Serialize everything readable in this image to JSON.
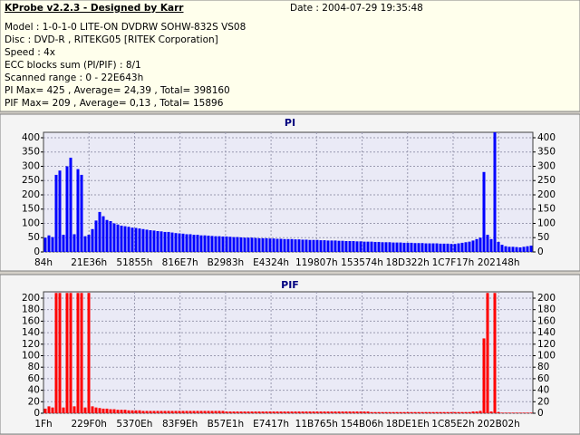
{
  "header": {
    "title": "KProbe v2.2.3 - Designed by Karr",
    "date": "Date : 2004-07-29 19:35:48",
    "lines": [
      "Model : 1-0-1-0 LITE-ON DVDRW SOHW-832S  VS08",
      "Disc : DVD-R , RITEKG05 [RITEK Corporation]",
      "Speed : 4x",
      "ECC blocks sum (PI/PIF) : 8/1",
      "Scanned range : 0 - 22E643h",
      "PI Max= 425 , Average= 24,39 , Total= 398160",
      "PIF Max= 209 , Average= 0,13 , Total= 15896"
    ]
  },
  "chart_data": [
    {
      "type": "bar",
      "title": "PI",
      "color": "#0000ff",
      "grid": true,
      "ylim": [
        0,
        419
      ],
      "yticks": [
        0,
        50,
        100,
        150,
        200,
        250,
        300,
        350,
        400
      ],
      "xticks": [
        "84h",
        "21E36h",
        "51855h",
        "816E7h",
        "B2983h",
        "E4324h",
        "119807h",
        "153574h",
        "18D322h",
        "1C7F17h",
        "202148h"
      ],
      "values": [
        50,
        58,
        52,
        270,
        285,
        60,
        300,
        330,
        62,
        290,
        270,
        55,
        60,
        80,
        110,
        140,
        125,
        112,
        108,
        100,
        96,
        92,
        90,
        88,
        85,
        84,
        82,
        80,
        78,
        76,
        75,
        73,
        72,
        70,
        70,
        68,
        66,
        65,
        64,
        62,
        62,
        60,
        60,
        58,
        58,
        57,
        56,
        55,
        55,
        54,
        54,
        53,
        52,
        52,
        51,
        50,
        50,
        50,
        49,
        48,
        48,
        48,
        47,
        47,
        46,
        46,
        45,
        45,
        45,
        44,
        44,
        43,
        43,
        42,
        42,
        42,
        41,
        41,
        40,
        40,
        40,
        39,
        39,
        38,
        38,
        38,
        37,
        37,
        36,
        36,
        36,
        35,
        35,
        34,
        34,
        34,
        33,
        33,
        33,
        32,
        32,
        32,
        31,
        31,
        31,
        30,
        30,
        30,
        30,
        29,
        29,
        29,
        28,
        28,
        30,
        32,
        34,
        36,
        40,
        45,
        50,
        280,
        60,
        45,
        425,
        35,
        25,
        20,
        18,
        18,
        17,
        16,
        18,
        20,
        22
      ]
    },
    {
      "type": "bar",
      "title": "PIF",
      "color": "#ff0000",
      "grid": true,
      "ylim": [
        0,
        211
      ],
      "yticks": [
        0,
        20,
        40,
        60,
        80,
        100,
        120,
        140,
        160,
        180,
        200
      ],
      "xticks": [
        "1Fh",
        "229F0h",
        "5370Eh",
        "83F9Eh",
        "B57E1h",
        "E7417h",
        "11B765h",
        "154B06h",
        "18DE1Eh",
        "1C85E2h",
        "202B02h"
      ],
      "values": [
        8,
        12,
        10,
        209,
        209,
        10,
        209,
        209,
        12,
        209,
        209,
        10,
        209,
        12,
        10,
        9,
        8,
        8,
        7,
        7,
        6,
        6,
        6,
        5,
        5,
        5,
        5,
        4,
        4,
        4,
        4,
        4,
        4,
        4,
        4,
        4,
        4,
        4,
        4,
        4,
        4,
        4,
        4,
        4,
        4,
        4,
        4,
        4,
        4,
        4,
        3,
        3,
        3,
        3,
        3,
        3,
        3,
        3,
        3,
        3,
        3,
        3,
        3,
        3,
        3,
        3,
        3,
        3,
        3,
        3,
        3,
        3,
        3,
        3,
        3,
        3,
        3,
        3,
        3,
        3,
        3,
        3,
        3,
        3,
        3,
        3,
        3,
        3,
        3,
        3,
        2,
        2,
        2,
        2,
        2,
        2,
        2,
        2,
        2,
        2,
        2,
        2,
        2,
        2,
        2,
        2,
        2,
        2,
        2,
        2,
        2,
        2,
        2,
        2,
        2,
        2,
        2,
        2,
        3,
        3,
        4,
        130,
        209,
        3,
        209,
        2,
        1,
        1,
        1,
        1,
        1,
        1,
        1,
        1,
        1
      ]
    }
  ]
}
